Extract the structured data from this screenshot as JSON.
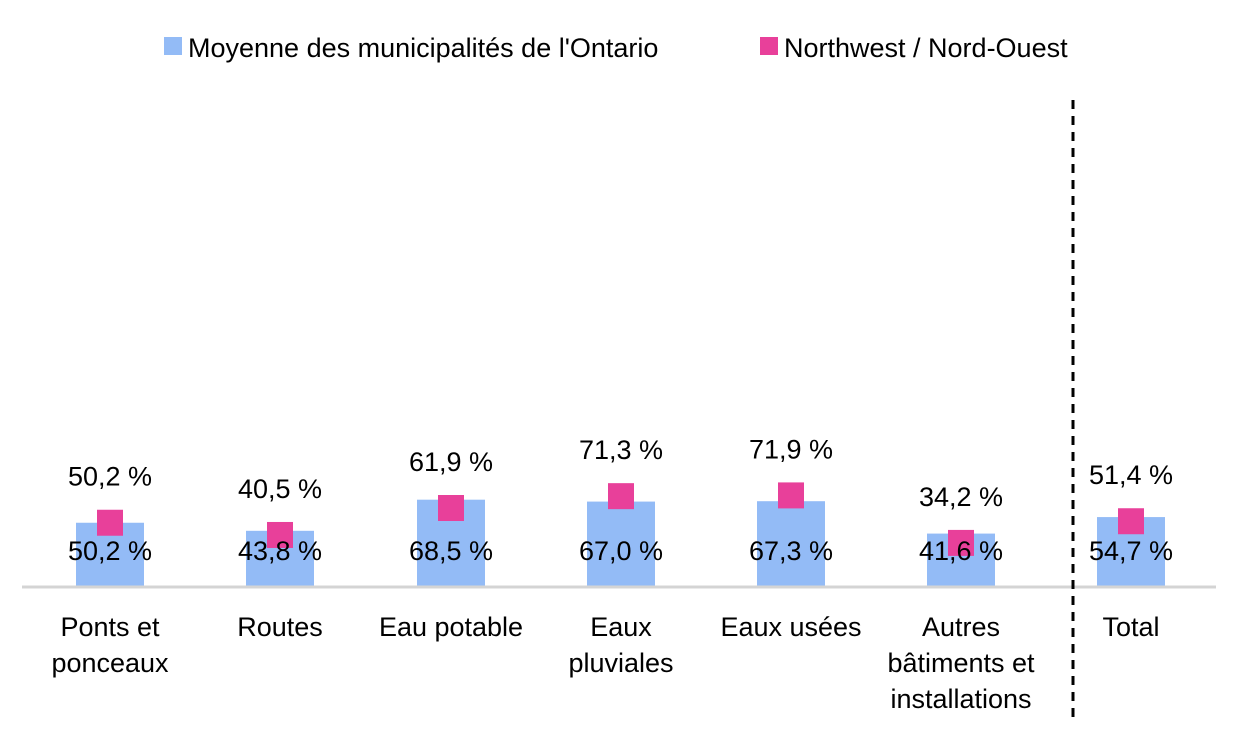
{
  "chart_data": {
    "type": "bar",
    "categories": [
      [
        "Ponts et",
        "ponceaux"
      ],
      [
        "Routes"
      ],
      [
        "Eau potable"
      ],
      [
        "Eaux",
        "pluviales"
      ],
      [
        "Eaux usées"
      ],
      [
        "Autres",
        "bâtiments et",
        "installations"
      ],
      [
        "Total"
      ]
    ],
    "series": [
      {
        "name": "Moyenne des municipalités de l'Ontario",
        "marker": "bar",
        "color": "#93bbf6",
        "values": [
          50.2,
          43.8,
          68.5,
          67.0,
          67.3,
          41.6,
          54.7
        ],
        "labels": [
          "50,2 %",
          "43,8 %",
          "68,5 %",
          "67,0 %",
          "67,3 %",
          "41,6 %",
          "54,7 %"
        ]
      },
      {
        "name": "Northwest / Nord-Ouest",
        "marker": "square",
        "color": "#e8409a",
        "values": [
          50.2,
          40.5,
          61.9,
          71.3,
          71.9,
          34.2,
          51.4
        ],
        "labels": [
          "50,2 %",
          "40,5 %",
          "61,9 %",
          "71,3 %",
          "71,9 %",
          "34,2 %",
          "51,4 %"
        ]
      }
    ],
    "ylim": [
      0,
      80
    ],
    "legend_position": "top",
    "separator_before_category": "Total",
    "grid": false
  }
}
